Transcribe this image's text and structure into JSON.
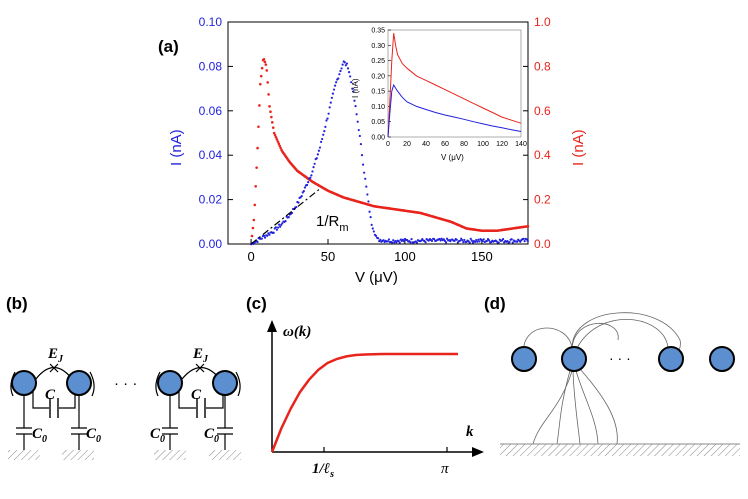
{
  "panels": {
    "a": "(a)",
    "b": "(b)",
    "c": "(c)",
    "d": "(d)"
  },
  "colors": {
    "blue": "#2222dd",
    "red": "#e8241c",
    "node_fill": "#5b8fd0",
    "axis": "#000000"
  },
  "chart_data": [
    {
      "type": "scatter",
      "panel": "a",
      "xlabel": "V (μV)",
      "ylabel_left": "I (nA)",
      "ylabel_right": "I (nA)",
      "xlim": [
        -15,
        180
      ],
      "ylim_left": [
        0,
        0.1
      ],
      "ylim_right": [
        0,
        1.0
      ],
      "xticks": [
        "0",
        "50",
        "100",
        "150"
      ],
      "xtick_values": [
        0,
        50,
        100,
        150
      ],
      "yticks_left": [
        "0.00",
        "0.02",
        "0.04",
        "0.06",
        "0.08",
        "0.10"
      ],
      "yticks_left_values": [
        0,
        0.02,
        0.04,
        0.06,
        0.08,
        0.1
      ],
      "yticks_right": [
        "0.0",
        "0.2",
        "0.4",
        "0.6",
        "0.8",
        "1.0"
      ],
      "yticks_right_values": [
        0,
        0.2,
        0.4,
        0.6,
        0.8,
        1.0
      ],
      "annotation": "1/R",
      "annotation_sub": "m",
      "series": [
        {
          "name": "blue (left axis)",
          "axis": "left",
          "x": [
            0,
            5,
            10,
            15,
            20,
            25,
            30,
            35,
            40,
            45,
            50,
            55,
            60,
            63,
            66,
            70,
            74,
            78,
            82,
            90,
            100,
            120,
            140,
            160,
            180
          ],
          "y": [
            0.0,
            0.002,
            0.004,
            0.006,
            0.009,
            0.013,
            0.018,
            0.025,
            0.033,
            0.044,
            0.058,
            0.072,
            0.082,
            0.08,
            0.07,
            0.052,
            0.03,
            0.01,
            0.002,
            0.0015,
            0.0015,
            0.0015,
            0.0015,
            0.0015,
            0.0015
          ]
        },
        {
          "name": "red (right axis)",
          "axis": "right",
          "x": [
            0,
            2,
            4,
            6,
            8,
            10,
            12,
            15,
            20,
            25,
            30,
            40,
            50,
            60,
            70,
            80,
            90,
            100,
            110,
            120,
            130,
            140,
            150,
            160,
            170,
            180
          ],
          "y": [
            0.0,
            0.12,
            0.4,
            0.72,
            0.84,
            0.8,
            0.62,
            0.5,
            0.42,
            0.37,
            0.33,
            0.28,
            0.24,
            0.21,
            0.19,
            0.17,
            0.16,
            0.15,
            0.14,
            0.12,
            0.1,
            0.07,
            0.06,
            0.06,
            0.07,
            0.08
          ]
        },
        {
          "name": "1/Rm fit",
          "axis": "left",
          "style": "dash-dot",
          "x": [
            0,
            45
          ],
          "y": [
            0.0,
            0.025
          ]
        }
      ]
    },
    {
      "type": "line",
      "panel": "a-inset",
      "xlabel": "V (μV)",
      "ylabel": "I (nA)",
      "xlim": [
        0,
        140
      ],
      "ylim": [
        0,
        0.35
      ],
      "xticks": [
        "0",
        "20",
        "40",
        "60",
        "80",
        "100",
        "120",
        "140"
      ],
      "xtick_values": [
        0,
        20,
        40,
        60,
        80,
        100,
        120,
        140
      ],
      "yticks": [
        "0.00",
        "0.05",
        "0.10",
        "0.15",
        "0.20",
        "0.25",
        "0.30",
        "0.35"
      ],
      "ytick_values": [
        0,
        0.05,
        0.1,
        0.15,
        0.2,
        0.25,
        0.3,
        0.35
      ],
      "series": [
        {
          "name": "red",
          "x": [
            0,
            2,
            4,
            6,
            8,
            10,
            15,
            20,
            30,
            40,
            50,
            60,
            70,
            80,
            90,
            100,
            110,
            120,
            130,
            140
          ],
          "y": [
            0.0,
            0.12,
            0.25,
            0.34,
            0.3,
            0.27,
            0.24,
            0.225,
            0.2,
            0.185,
            0.17,
            0.155,
            0.14,
            0.125,
            0.11,
            0.095,
            0.08,
            0.065,
            0.055,
            0.045
          ]
        },
        {
          "name": "blue",
          "x": [
            0,
            2,
            4,
            6,
            8,
            10,
            15,
            20,
            30,
            40,
            50,
            60,
            70,
            80,
            90,
            100,
            110,
            120,
            130,
            140
          ],
          "y": [
            0.0,
            0.08,
            0.15,
            0.17,
            0.16,
            0.15,
            0.13,
            0.115,
            0.1,
            0.09,
            0.08,
            0.072,
            0.065,
            0.058,
            0.05,
            0.043,
            0.036,
            0.03,
            0.024,
            0.018
          ]
        }
      ]
    },
    {
      "type": "line",
      "panel": "c",
      "xlabel": "k",
      "ylabel": "ω(k)",
      "xticks": [
        "1/ℓ",
        "π"
      ],
      "xtick_sub": "s",
      "series": [
        {
          "name": "dispersion",
          "x": [
            0,
            0.05,
            0.1,
            0.15,
            0.2,
            0.25,
            0.3,
            0.35,
            0.4,
            0.45,
            0.5,
            0.6,
            0.7,
            0.8,
            0.9,
            1.0
          ],
          "y": [
            0.0,
            0.24,
            0.44,
            0.61,
            0.74,
            0.84,
            0.91,
            0.95,
            0.975,
            0.99,
            0.995,
            1.0,
            1.0,
            1.0,
            1.0,
            1.0
          ]
        }
      ]
    }
  ],
  "circuit": {
    "ej": "E",
    "ej_sub": "J",
    "c": "C",
    "c0": "C",
    "c0_sub": "0",
    "ellipsis": "· · ·"
  },
  "network": {
    "ellipsis": "· · ·"
  }
}
